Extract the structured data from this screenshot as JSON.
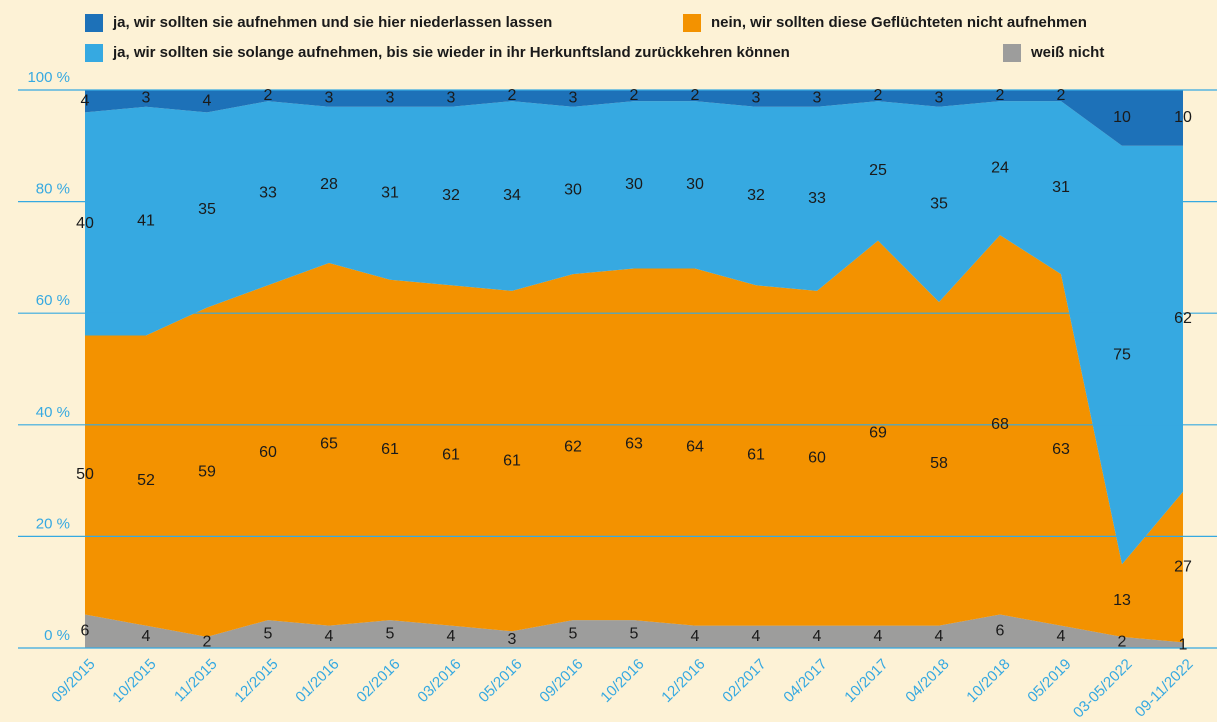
{
  "chart_data": {
    "type": "stacked_area",
    "categories": [
      "09/2015",
      "10/2015",
      "11/2015",
      "12/2015",
      "01/2016",
      "02/2016",
      "03/2016",
      "05/2016",
      "09/2016",
      "10/2016",
      "12/2016",
      "02/2017",
      "04/2017",
      "10/2017",
      "04/2018",
      "10/2018",
      "05/2019",
      "03-05/2022",
      "09-11/2022"
    ],
    "series": [
      {
        "name": "weiß nicht",
        "color": "#9d9d9c",
        "values": [
          6,
          4,
          2,
          5,
          4,
          5,
          4,
          3,
          5,
          5,
          4,
          4,
          4,
          4,
          4,
          6,
          4,
          2,
          1
        ]
      },
      {
        "name": "nein, wir sollten diese Geflüchteten nicht aufnehmen",
        "color": "#f39200",
        "values": [
          50,
          52,
          59,
          60,
          65,
          61,
          61,
          61,
          62,
          63,
          64,
          61,
          60,
          69,
          58,
          68,
          63,
          13,
          27
        ]
      },
      {
        "name": "ja, wir sollten sie solange aufnehmen, bis sie wieder in ihr Herkunftsland zurückkehren können",
        "color": "#36a9e1",
        "values": [
          40,
          41,
          35,
          33,
          28,
          31,
          32,
          34,
          30,
          30,
          30,
          32,
          33,
          25,
          35,
          24,
          31,
          75,
          62
        ]
      },
      {
        "name": "ja, wir sollten sie aufnehmen und sie hier niederlassen lassen",
        "color": "#1d71b8",
        "values": [
          4,
          3,
          4,
          2,
          3,
          3,
          3,
          2,
          3,
          2,
          2,
          3,
          3,
          2,
          3,
          2,
          2,
          10,
          10
        ]
      }
    ],
    "ylim": [
      0,
      100
    ],
    "yticks": [
      {
        "value": 0,
        "label": "0 %"
      },
      {
        "value": 20,
        "label": "20 %"
      },
      {
        "value": 40,
        "label": "40 %"
      },
      {
        "value": 60,
        "label": "60 %"
      },
      {
        "value": 80,
        "label": "80 %"
      },
      {
        "value": 100,
        "label": "100 %"
      }
    ],
    "grid": true
  }
}
